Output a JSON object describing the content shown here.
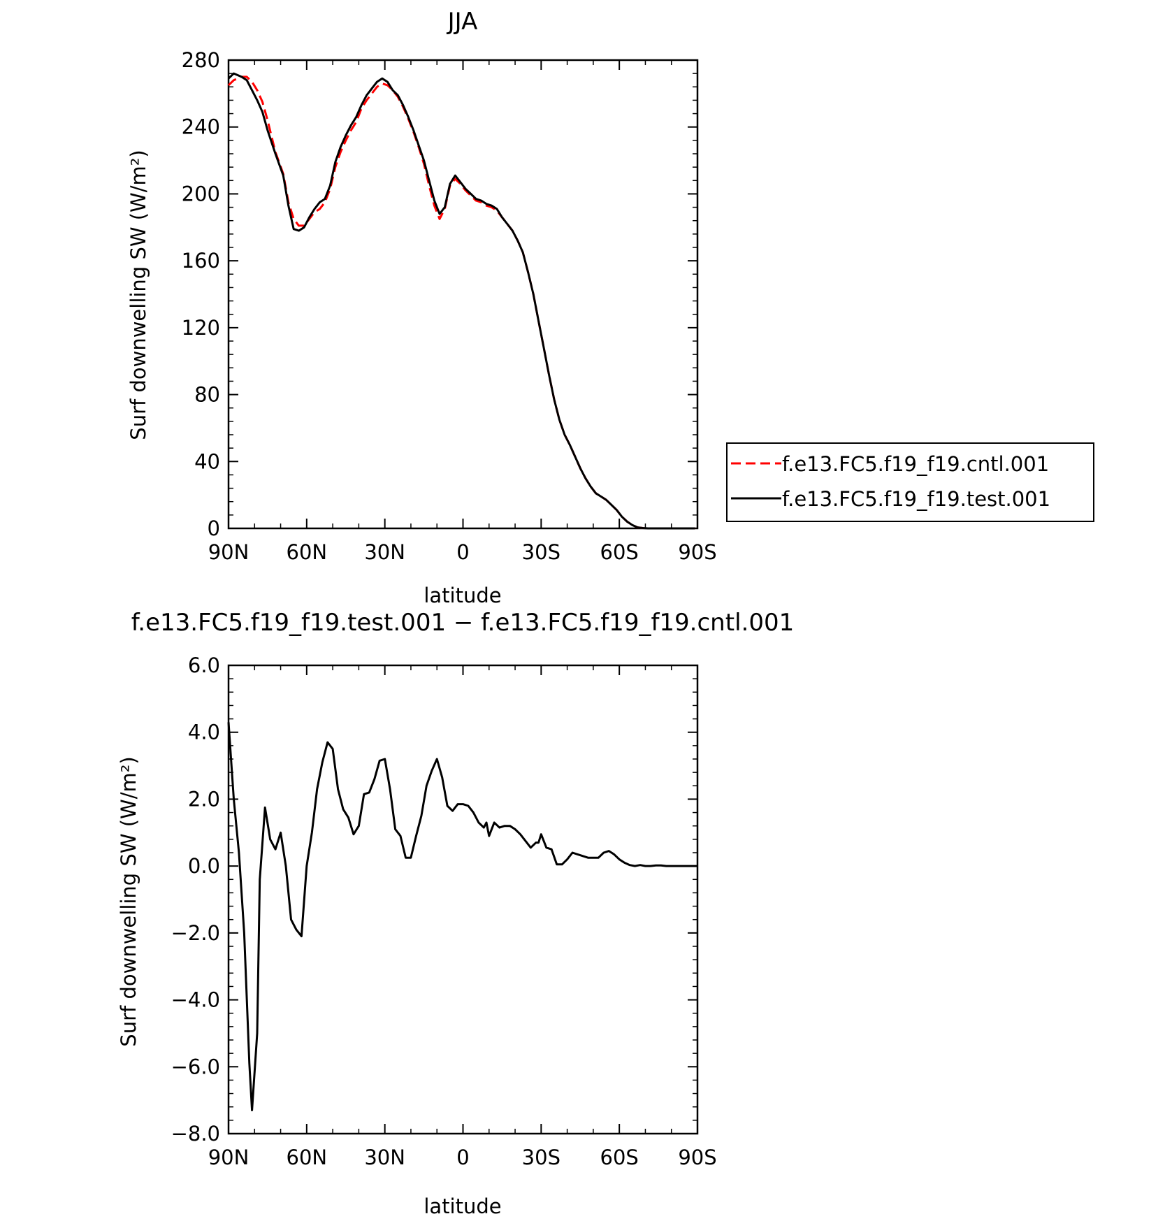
{
  "chart_data": [
    {
      "type": "line",
      "title": "JJA",
      "xlabel": "latitude",
      "ylabel": "Surf downwelling SW (W/m²)",
      "xlim": [
        90,
        -90
      ],
      "ylim": [
        0,
        280
      ],
      "xticks": [
        {
          "value": 90,
          "label": "90N"
        },
        {
          "value": 60,
          "label": "60N"
        },
        {
          "value": 30,
          "label": "30N"
        },
        {
          "value": 0,
          "label": "0"
        },
        {
          "value": -30,
          "label": "30S"
        },
        {
          "value": -60,
          "label": "60S"
        },
        {
          "value": -90,
          "label": "90S"
        }
      ],
      "yticks": [
        {
          "value": 0,
          "label": "0"
        },
        {
          "value": 40,
          "label": "40"
        },
        {
          "value": 80,
          "label": "80"
        },
        {
          "value": 120,
          "label": "120"
        },
        {
          "value": 160,
          "label": "160"
        },
        {
          "value": 200,
          "label": "200"
        },
        {
          "value": 240,
          "label": "240"
        },
        {
          "value": 280,
          "label": "280"
        }
      ],
      "legend_position": "right",
      "series": [
        {
          "name": "f.e13.FC5.f19_f19.cntl.001",
          "color": "#ff0000",
          "dash": "dashed",
          "x": [
            90,
            88,
            85,
            83,
            81,
            79,
            77,
            75,
            72,
            69,
            67,
            65,
            63,
            61,
            59,
            57,
            55,
            53,
            51,
            49,
            47,
            45,
            43,
            41,
            39,
            37,
            35,
            33,
            31,
            29,
            27,
            25,
            23,
            21,
            19,
            17,
            15,
            13,
            11,
            9,
            7,
            5,
            3,
            1,
            -1,
            -3,
            -5,
            -7,
            -9,
            -11,
            -13,
            -15,
            -17,
            -19,
            -21,
            -23,
            -25,
            -27,
            -29,
            -31,
            -33,
            -35,
            -37,
            -39,
            -41,
            -43,
            -45,
            -47,
            -49,
            -51,
            -53,
            -55,
            -57,
            -59,
            -61,
            -63,
            -65,
            -67,
            -69,
            -71,
            -73,
            -75,
            -77,
            -79,
            -81,
            -83,
            -85,
            -87,
            -89
          ],
          "y": [
            265,
            268,
            270,
            270,
            267,
            262,
            255,
            244,
            225,
            212,
            195,
            185,
            181,
            181,
            185,
            189,
            191,
            195,
            203,
            216,
            225,
            232,
            238,
            243,
            251,
            256,
            260,
            264,
            266,
            265,
            262,
            258,
            252,
            245,
            237,
            228,
            218,
            205,
            193,
            185,
            191,
            205,
            209,
            206,
            202,
            199,
            196,
            195,
            193,
            192,
            190,
            186,
            182,
            178,
            172,
            165,
            153,
            140,
            124,
            108,
            92,
            77,
            65,
            56,
            50,
            43,
            36,
            30,
            25,
            21,
            19,
            17,
            14,
            11,
            7,
            4,
            2,
            0.6,
            0.2,
            0,
            0,
            0,
            0,
            0,
            0,
            0,
            0,
            0,
            0
          ]
        },
        {
          "name": "f.e13.FC5.f19_f19.test.001",
          "color": "#000000",
          "dash": "solid",
          "x": [
            90,
            88,
            85,
            83,
            81,
            79,
            77,
            75,
            72,
            69,
            67,
            65,
            63,
            61,
            59,
            57,
            55,
            53,
            51,
            49,
            47,
            45,
            43,
            41,
            39,
            37,
            35,
            33,
            31,
            29,
            27,
            25,
            23,
            21,
            19,
            17,
            15,
            13,
            11,
            9,
            7,
            5,
            3,
            1,
            -1,
            -3,
            -5,
            -7,
            -9,
            -11,
            -13,
            -15,
            -17,
            -19,
            -21,
            -23,
            -25,
            -27,
            -29,
            -31,
            -33,
            -35,
            -37,
            -39,
            -41,
            -43,
            -45,
            -47,
            -49,
            -51,
            -53,
            -55,
            -57,
            -59,
            -61,
            -63,
            -65,
            -67,
            -69,
            -71,
            -73,
            -75,
            -77,
            -79,
            -81,
            -83,
            -85,
            -87,
            -89
          ],
          "y": [
            269,
            272,
            270,
            268,
            262,
            256,
            249,
            238,
            224,
            211,
            193,
            179,
            178,
            180,
            186,
            191,
            195,
            197,
            205,
            219,
            228,
            235,
            241,
            246,
            253,
            259,
            263,
            267,
            269,
            267,
            262,
            259,
            253,
            246,
            238,
            229,
            220,
            208,
            196,
            188,
            192,
            206,
            211,
            207,
            203,
            200,
            197,
            196,
            194,
            193,
            191,
            186,
            182,
            178,
            172,
            165,
            153,
            140,
            124,
            108,
            92,
            77,
            65,
            56,
            50,
            43,
            36,
            30,
            25,
            21,
            19,
            17,
            14,
            11,
            7,
            4,
            2,
            0.6,
            0.2,
            0,
            0,
            0,
            0,
            0,
            0,
            0,
            0,
            0,
            0
          ]
        }
      ]
    },
    {
      "type": "line",
      "title": "f.e13.FC5.f19_f19.test.001 − f.e13.FC5.f19_f19.cntl.001",
      "xlabel": "latitude",
      "ylabel": "Surf downwelling SW (W/m²)",
      "xlim": [
        90,
        -90
      ],
      "ylim": [
        -8,
        6
      ],
      "xticks": [
        {
          "value": 90,
          "label": "90N"
        },
        {
          "value": 60,
          "label": "60N"
        },
        {
          "value": 30,
          "label": "30N"
        },
        {
          "value": 0,
          "label": "0"
        },
        {
          "value": -30,
          "label": "30S"
        },
        {
          "value": -60,
          "label": "60S"
        },
        {
          "value": -90,
          "label": "90S"
        }
      ],
      "yticks": [
        {
          "value": -8,
          "label": "−8.0"
        },
        {
          "value": -6,
          "label": "−6.0"
        },
        {
          "value": -4,
          "label": "−4.0"
        },
        {
          "value": -2,
          "label": "−2.0"
        },
        {
          "value": 0,
          "label": "0.0"
        },
        {
          "value": 2,
          "label": "2.0"
        },
        {
          "value": 4,
          "label": "4.0"
        },
        {
          "value": 6,
          "label": "6.0"
        }
      ],
      "series": [
        {
          "color": "#000000",
          "dash": "solid",
          "x": [
            90,
            88,
            86,
            84,
            82,
            81,
            79,
            78,
            76,
            74,
            72,
            70,
            68,
            66,
            64,
            62,
            60,
            58,
            56,
            54,
            52,
            50,
            48,
            46,
            44,
            42,
            40,
            38,
            36,
            34,
            32,
            30,
            28,
            26,
            24,
            22,
            20,
            18,
            16,
            14,
            12,
            10,
            8,
            6,
            4,
            2,
            0,
            -2,
            -4,
            -6,
            -8,
            -9,
            -10,
            -12,
            -14,
            -16,
            -18,
            -20,
            -22,
            -24,
            -26,
            -28,
            -29,
            -30,
            -32,
            -34,
            -36,
            -38,
            -40,
            -42,
            -44,
            -46,
            -48,
            -50,
            -52,
            -54,
            -56,
            -58,
            -60,
            -62,
            -64,
            -66,
            -68,
            -70,
            -72,
            -74,
            -76,
            -78,
            -80,
            -82,
            -84,
            -86,
            -88,
            -90
          ],
          "y": [
            4.3,
            2.0,
            0.4,
            -2.0,
            -5.9,
            -7.3,
            -5.0,
            -0.4,
            1.75,
            0.8,
            0.5,
            1.0,
            0.0,
            -1.6,
            -1.9,
            -2.1,
            0.0,
            1.0,
            2.3,
            3.1,
            3.7,
            3.5,
            2.3,
            1.7,
            1.45,
            0.95,
            1.2,
            2.15,
            2.2,
            2.6,
            3.15,
            3.2,
            2.3,
            1.1,
            0.9,
            0.25,
            0.25,
            0.9,
            1.5,
            2.4,
            2.85,
            3.2,
            2.65,
            1.8,
            1.65,
            1.85,
            1.85,
            1.8,
            1.6,
            1.3,
            1.15,
            1.3,
            0.9,
            1.3,
            1.15,
            1.2,
            1.2,
            1.1,
            0.95,
            0.75,
            0.55,
            0.7,
            0.7,
            0.95,
            0.55,
            0.5,
            0.05,
            0.05,
            0.2,
            0.4,
            0.35,
            0.3,
            0.25,
            0.25,
            0.25,
            0.4,
            0.45,
            0.35,
            0.2,
            0.1,
            0.03,
            0.0,
            0.03,
            0.0,
            0.0,
            0.02,
            0.02,
            0.0,
            0.0,
            0.0,
            0.0,
            0.0,
            0.0,
            0.0
          ]
        }
      ]
    }
  ]
}
